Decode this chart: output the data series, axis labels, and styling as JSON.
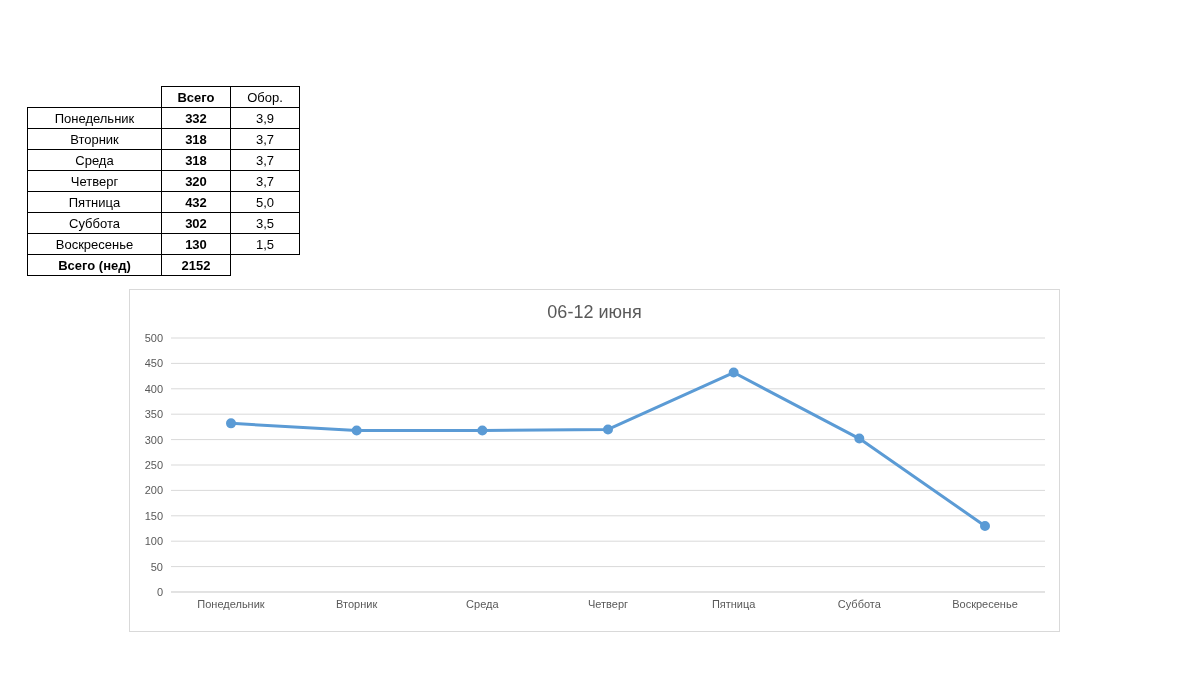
{
  "chart_data": [
    {
      "type": "other",
      "categories": [
        "Понедельник",
        "Вторник",
        "Среда",
        "Четверг",
        "Пятница",
        "Суббота",
        "Воскресенье"
      ],
      "series": [
        {
          "name": "Всего",
          "values": [
            332,
            318,
            318,
            320,
            432,
            302,
            130
          ]
        },
        {
          "name": "Обор.",
          "values": [
            3.9,
            3.7,
            3.7,
            3.7,
            5.0,
            3.5,
            1.5
          ],
          "value_labels": [
            "3,9",
            "3,7",
            "3,7",
            "3,7",
            "5,0",
            "3,5",
            "1,5"
          ]
        }
      ],
      "annotations": [
        "Всего (нед)",
        "2152"
      ],
      "data_labels": true
    },
    {
      "type": "line",
      "title": "06-12 июня",
      "categories": [
        "Понедельник",
        "Вторник",
        "Среда",
        "Четверг",
        "Пятница",
        "Суббота",
        "Воскресенье"
      ],
      "series": [
        {
          "color": "#5b9bd5",
          "values": [
            332,
            318,
            318,
            320,
            432,
            302,
            130
          ]
        }
      ],
      "ylim": [
        0,
        500
      ],
      "yticks": [
        0,
        50,
        100,
        150,
        200,
        250,
        300,
        350,
        400,
        450,
        500
      ],
      "grid": "y",
      "marker": "circle",
      "line_style": "solid",
      "legend": false
    }
  ]
}
